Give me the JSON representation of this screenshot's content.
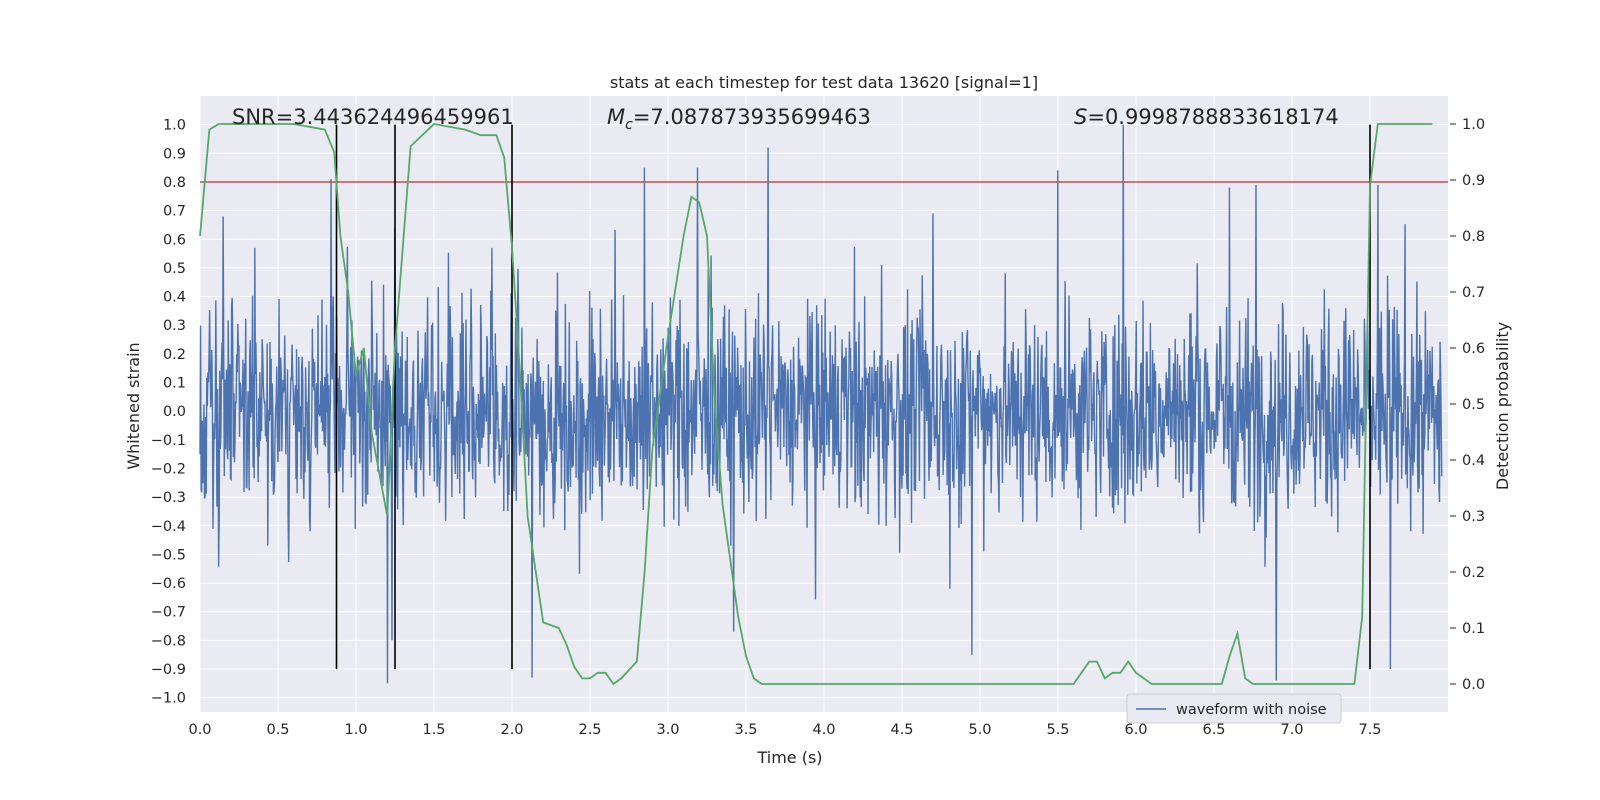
{
  "chart_data": {
    "type": "line",
    "title": "stats at each timestep for test data 13620 [signal=1]",
    "xlabel": "Time (s)",
    "ylabel_left": "Whitened strain",
    "ylabel_right": "Detection probability",
    "xlim": [
      0.0,
      8.0
    ],
    "ylim_left": [
      -1.05,
      1.1
    ],
    "ylim_right": [
      -0.05,
      1.05
    ],
    "x_ticks": [
      "0.0",
      "0.5",
      "1.0",
      "1.5",
      "2.0",
      "2.5",
      "3.0",
      "3.5",
      "4.0",
      "4.5",
      "5.0",
      "5.5",
      "6.0",
      "6.5",
      "7.0",
      "7.5"
    ],
    "y_left_ticks": [
      "1.0",
      "0.9",
      "0.8",
      "0.7",
      "0.6",
      "0.5",
      "0.4",
      "0.3",
      "0.2",
      "0.1",
      "0.0",
      "-0.1",
      "-0.2",
      "-0.3",
      "-0.4",
      "-0.5",
      "-0.6",
      "-0.7",
      "-0.8",
      "-0.9",
      "-1.0"
    ],
    "y_right_ticks": [
      "1.0",
      "0.9",
      "0.8",
      "0.7",
      "0.6",
      "0.5",
      "0.4",
      "0.3",
      "0.2",
      "0.1",
      "0.0"
    ],
    "grid": true,
    "legend_position": "lower-right",
    "annotations": {
      "snr": "SNR=3.443624496459961",
      "mc_symbol": "M",
      "mc_sub": "c",
      "mc_value": "=7.087873935699463",
      "s_symbol": "S",
      "s_value": "=0.9998788833618174"
    },
    "threshold": {
      "value": 0.8,
      "axis": "left",
      "color": "#c44e52"
    },
    "vertical_lines": {
      "x": [
        0.875,
        1.25,
        2.0,
        7.5
      ],
      "y_range": [
        -0.9,
        1.0
      ],
      "color": "#000000"
    },
    "series": [
      {
        "name": "waveform with noise",
        "color": "#4c72b0",
        "axis": "left",
        "envelope": {
          "typical_abs": 0.32,
          "peak_abs": 1.0
        },
        "spikes": [
          [
            0.15,
            0.68
          ],
          [
            0.35,
            0.57
          ],
          [
            0.84,
            0.81
          ],
          [
            1.25,
            0.64
          ],
          [
            1.87,
            0.57
          ],
          [
            2.85,
            0.85
          ],
          [
            3.19,
            0.85
          ],
          [
            3.64,
            0.92
          ],
          [
            4.7,
            0.69
          ],
          [
            5.5,
            0.84
          ],
          [
            5.92,
            1.0
          ],
          [
            6.6,
            0.78
          ],
          [
            6.77,
            0.79
          ],
          [
            7.55,
            0.79
          ],
          [
            1.2,
            -0.95
          ],
          [
            1.23,
            -0.8
          ],
          [
            2.13,
            -0.93
          ],
          [
            3.42,
            -0.77
          ],
          [
            4.95,
            -0.85
          ],
          [
            6.9,
            -0.94
          ],
          [
            7.63,
            -0.9
          ]
        ]
      },
      {
        "name": "",
        "color": "#55a868",
        "axis": "right",
        "x": [
          0.0,
          0.06,
          0.12,
          0.25,
          0.4,
          0.6,
          0.8,
          0.86,
          0.9,
          0.95,
          1.0,
          1.05,
          1.1,
          1.2,
          1.25,
          1.3,
          1.35,
          1.5,
          1.7,
          1.8,
          1.9,
          1.95,
          2.0,
          2.05,
          2.1,
          2.2,
          2.3,
          2.35,
          2.4,
          2.45,
          2.5,
          2.55,
          2.6,
          2.65,
          2.7,
          2.8,
          2.85,
          2.9,
          3.0,
          3.1,
          3.15,
          3.2,
          3.25,
          3.3,
          3.35,
          3.45,
          3.5,
          3.55,
          3.6,
          3.7,
          3.8,
          3.9,
          4.0,
          4.2,
          4.5,
          5.0,
          5.3,
          5.5,
          5.6,
          5.65,
          5.7,
          5.75,
          5.8,
          5.85,
          5.9,
          5.95,
          6.0,
          6.1,
          6.2,
          6.5,
          6.55,
          6.6,
          6.65,
          6.7,
          6.75,
          6.8,
          6.9,
          7.0,
          7.2,
          7.35,
          7.4,
          7.45,
          7.5,
          7.55,
          7.6,
          7.7,
          7.9
        ],
        "values": [
          0.8,
          0.99,
          1.0,
          1.0,
          1.0,
          1.0,
          0.99,
          0.95,
          0.8,
          0.7,
          0.55,
          0.6,
          0.45,
          0.3,
          0.6,
          0.78,
          0.96,
          1.0,
          0.99,
          0.98,
          0.98,
          0.94,
          0.78,
          0.56,
          0.3,
          0.11,
          0.1,
          0.07,
          0.03,
          0.01,
          0.01,
          0.02,
          0.02,
          0.0,
          0.01,
          0.04,
          0.2,
          0.42,
          0.62,
          0.8,
          0.87,
          0.86,
          0.8,
          0.5,
          0.32,
          0.12,
          0.05,
          0.01,
          0.0,
          0.0,
          0.0,
          0.0,
          0.0,
          0.0,
          0.0,
          0.0,
          0.0,
          0.0,
          0.0,
          0.02,
          0.04,
          0.04,
          0.01,
          0.02,
          0.02,
          0.04,
          0.02,
          0.0,
          0.0,
          0.0,
          0.0,
          0.05,
          0.09,
          0.01,
          0.0,
          0.0,
          0.0,
          0.0,
          0.0,
          0.0,
          0.0,
          0.12,
          0.89,
          1.0,
          1.0,
          1.0,
          1.0
        ]
      }
    ]
  }
}
